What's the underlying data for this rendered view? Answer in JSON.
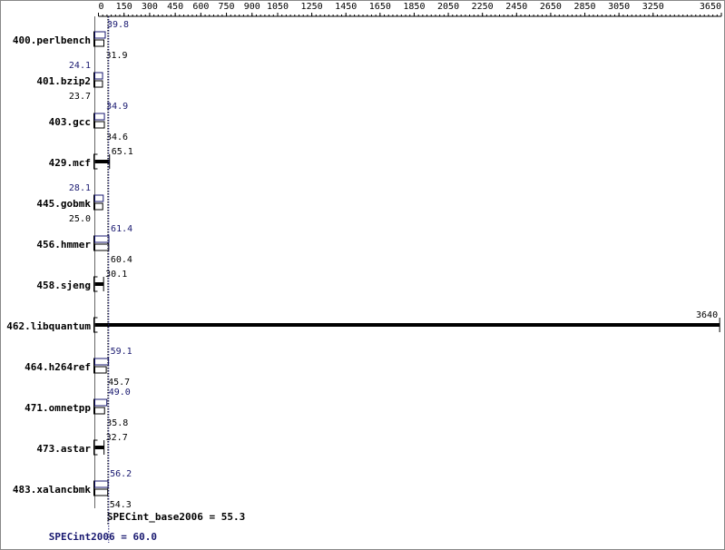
{
  "chart_data": {
    "type": "bar",
    "categories": [
      "400.perlbench",
      "401.bzip2",
      "403.gcc",
      "429.mcf",
      "445.gobmk",
      "456.hmmer",
      "458.sjeng",
      "462.libquantum",
      "464.h264ref",
      "471.omnetpp",
      "473.astar",
      "483.xalancbmk"
    ],
    "series": [
      {
        "color": "#191970",
        "values": [
          39.8,
          24.1,
          34.9,
          null,
          28.1,
          61.4,
          null,
          null,
          59.1,
          49.0,
          null,
          56.2
        ],
        "value_labels": [
          "39.8",
          "24.1",
          "34.9",
          null,
          "28.1",
          "61.4",
          null,
          null,
          "59.1",
          "49.0",
          null,
          "56.2"
        ]
      },
      {
        "color": "#000000",
        "values": [
          31.9,
          23.7,
          34.6,
          65.1,
          25.0,
          60.4,
          30.1,
          3640,
          45.7,
          35.8,
          32.7,
          54.3
        ],
        "value_labels": [
          "31.9",
          "23.7",
          "34.6",
          "65.1",
          "25.0",
          "60.4",
          "30.1",
          "3640",
          "45.7",
          "35.8",
          "32.7",
          "54.3"
        ]
      }
    ],
    "xlim": [
      0,
      3650
    ],
    "xticks": [
      0,
      150,
      300,
      450,
      600,
      750,
      900,
      1050,
      1250,
      1450,
      1650,
      1850,
      2050,
      2250,
      2450,
      2650,
      2850,
      3050,
      3250,
      3650
    ],
    "reference_lines": [
      {
        "label": "SPECint_base2006 = 55.3",
        "value": 55.3,
        "color": "#000000"
      },
      {
        "label": "SPECint2006 = 60.0",
        "value": 60.0,
        "color": "#191970"
      }
    ]
  }
}
